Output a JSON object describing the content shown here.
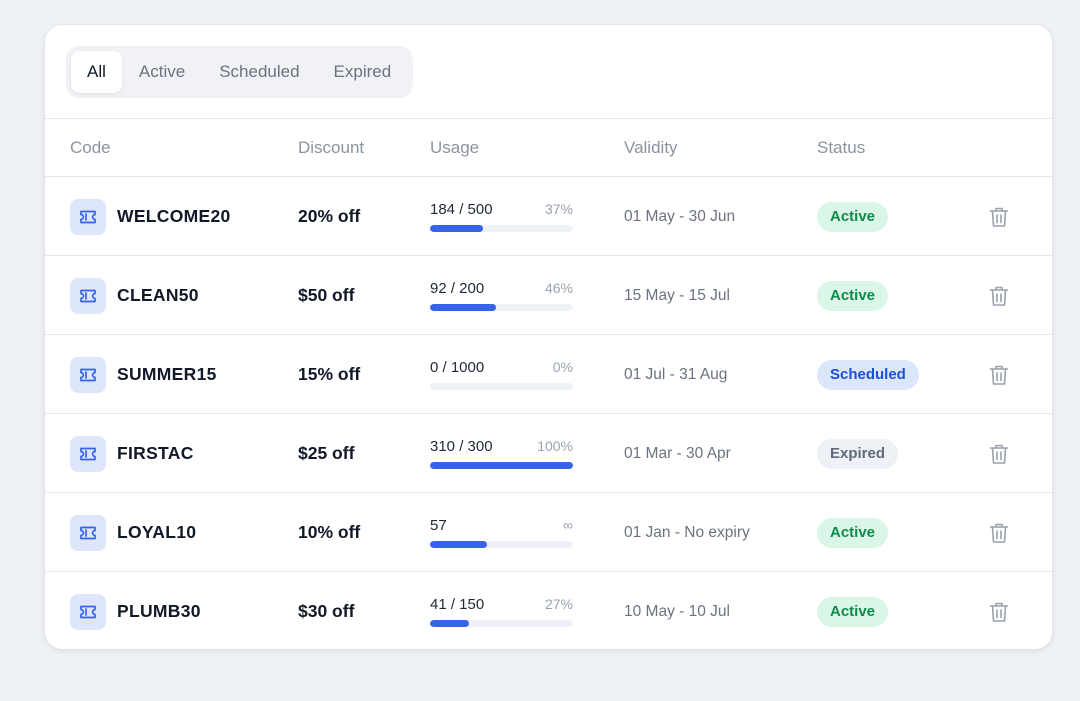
{
  "tabs": [
    "All",
    "Active",
    "Scheduled",
    "Expired"
  ],
  "active_tab": "All",
  "columns": {
    "code": "Code",
    "discount": "Discount",
    "usage": "Usage",
    "validity": "Validity",
    "status": "Status"
  },
  "colors": {
    "accent": "#3563e9",
    "active_badge_bg": "#d9f6e7",
    "active_badge_text": "#0f8a4a",
    "scheduled_badge_bg": "#dce6fb",
    "scheduled_badge_text": "#1d4ed8",
    "expired_badge_bg": "#eef1f5",
    "expired_badge_text": "#5f6b7a"
  },
  "coupons": [
    {
      "code": "WELCOME20",
      "discount": "20% off",
      "usage": "184 / 500",
      "pct": "37%",
      "progress": 0.37,
      "validity": "01 May - 30 Jun",
      "status": "Active",
      "status_key": "active",
      "icon": "ticket-icon"
    },
    {
      "code": "CLEAN50",
      "discount": "$50 off",
      "usage": "92 / 200",
      "pct": "46%",
      "progress": 0.46,
      "validity": "15 May - 15 Jul",
      "status": "Active",
      "status_key": "active",
      "icon": "ticket-icon"
    },
    {
      "code": "SUMMER15",
      "discount": "15% off",
      "usage": "0 / 1000",
      "pct": "0%",
      "progress": 0.0,
      "validity": "01 Jul - 31 Aug",
      "status": "Scheduled",
      "status_key": "scheduled",
      "icon": "ticket-icon"
    },
    {
      "code": "FIRSTAC",
      "discount": "$25 off",
      "usage": "310 / 300",
      "pct": "100%",
      "progress": 1.0,
      "validity": "01 Mar - 30 Apr",
      "status": "Expired",
      "status_key": "expired",
      "icon": "ticket-icon"
    },
    {
      "code": "LOYAL10",
      "discount": "10% off",
      "usage": "57",
      "pct": "∞",
      "progress": 0.4,
      "validity": "01 Jan - No expiry",
      "status": "Active",
      "status_key": "active",
      "icon": "ticket-icon"
    },
    {
      "code": "PLUMB30",
      "discount": "$30 off",
      "usage": "41 / 150",
      "pct": "27%",
      "progress": 0.27,
      "validity": "10 May - 10 Jul",
      "status": "Active",
      "status_key": "active",
      "icon": "ticket-icon"
    }
  ]
}
